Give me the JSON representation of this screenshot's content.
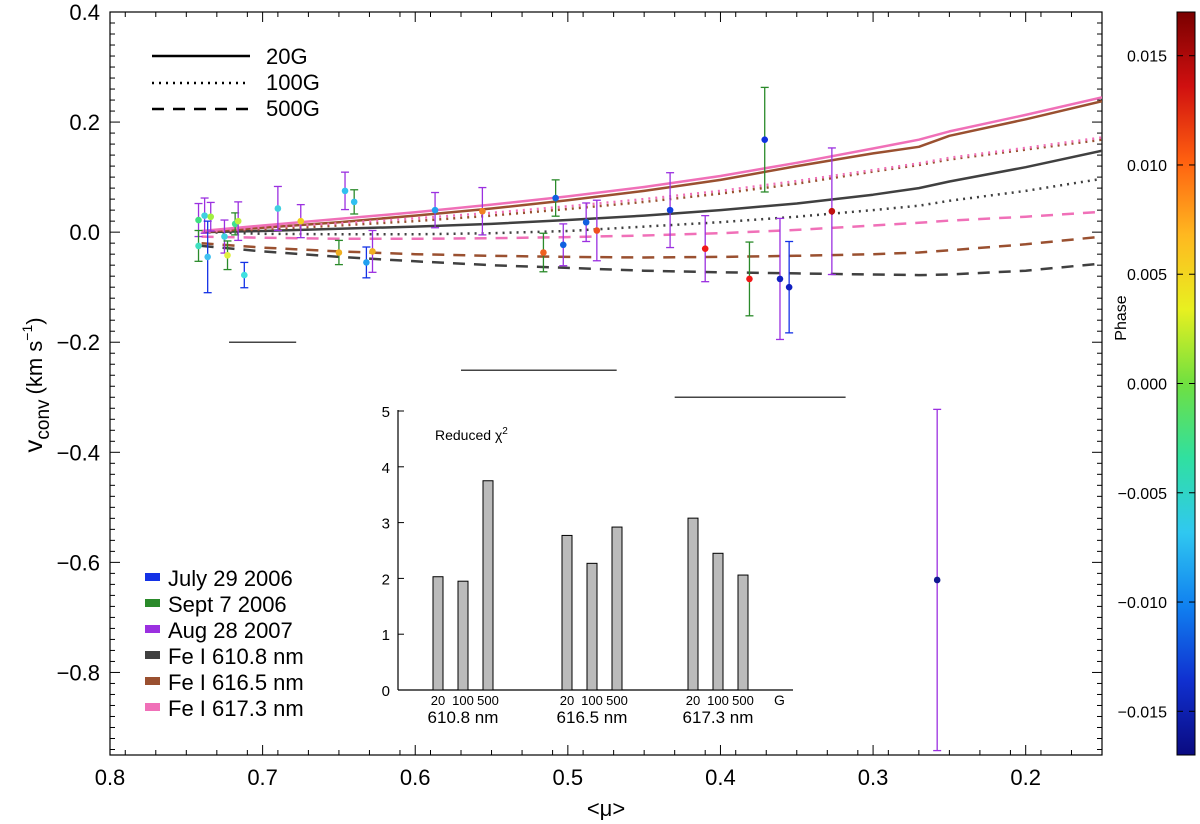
{
  "chart_data": {
    "type": "scatter",
    "main": {
      "xlabel": "<μ>",
      "ylabel": "v",
      "ylabel_sub": "conv",
      "ylabel_units_prefix": "(km s",
      "ylabel_units_exp": "−1",
      "ylabel_units_suffix": ")",
      "xlim": [
        0.8,
        0.15
      ],
      "ylim": [
        -0.95,
        0.4
      ],
      "xticks": [
        0.8,
        0.7,
        0.6,
        0.5,
        0.4,
        0.3,
        0.2
      ],
      "xtick_labels": [
        "0.8",
        "0.7",
        "0.6",
        "0.5",
        "0.4",
        "0.3",
        "0.2"
      ],
      "yticks": [
        0.4,
        0.2,
        0.0,
        -0.2,
        -0.4,
        -0.6,
        -0.8
      ],
      "ytick_labels": [
        "0.4",
        "0.2",
        "0.0",
        "−0.2",
        "−0.4",
        "−0.6",
        "−0.8"
      ]
    },
    "line_styles_legend": [
      {
        "label": "20G",
        "dash": "solid"
      },
      {
        "label": "100G",
        "dash": "dotted"
      },
      {
        "label": "500G",
        "dash": "dashed"
      }
    ],
    "color_legend": [
      {
        "label": "July 29 2006",
        "color": "#1432e6"
      },
      {
        "label": "Sept 7 2006",
        "color": "#2a8a2a"
      },
      {
        "label": "Aug 28 2007",
        "color": "#9b30e0"
      },
      {
        "label": "Fe I 610.8 nm",
        "color": "#404040"
      },
      {
        "label": "Fe I 616.5 nm",
        "color": "#9a5030"
      },
      {
        "label": "Fe I 617.3 nm",
        "color": "#f070b8"
      }
    ],
    "model_curves": {
      "x": [
        0.74,
        0.7,
        0.65,
        0.6,
        0.55,
        0.5,
        0.45,
        0.4,
        0.35,
        0.3,
        0.27,
        0.25,
        0.2,
        0.15
      ],
      "series": [
        {
          "name": "Fe I 610.8 nm 20G",
          "color": "#404040",
          "dash": "solid",
          "y": [
            0.0,
            0.002,
            0.006,
            0.01,
            0.015,
            0.022,
            0.03,
            0.04,
            0.052,
            0.068,
            0.08,
            0.092,
            0.118,
            0.148
          ]
        },
        {
          "name": "Fe I 610.8 nm 100G",
          "color": "#404040",
          "dash": "dotted",
          "y": [
            0.0,
            -0.003,
            -0.004,
            -0.004,
            -0.002,
            0.002,
            0.01,
            0.018,
            0.028,
            0.04,
            0.048,
            0.057,
            0.075,
            0.097
          ]
        },
        {
          "name": "Fe I 610.8 nm 500G",
          "color": "#404040",
          "dash": "dashed",
          "y": [
            -0.025,
            -0.035,
            -0.045,
            -0.053,
            -0.06,
            -0.065,
            -0.07,
            -0.073,
            -0.075,
            -0.077,
            -0.078,
            -0.077,
            -0.07,
            -0.057
          ]
        },
        {
          "name": "Fe I 616.5 nm 20G",
          "color": "#9a5030",
          "dash": "solid",
          "y": [
            0.0,
            0.008,
            0.018,
            0.03,
            0.043,
            0.058,
            0.075,
            0.095,
            0.12,
            0.143,
            0.155,
            0.175,
            0.205,
            0.238
          ]
        },
        {
          "name": "Fe I 616.5 nm 100G",
          "color": "#9a5030",
          "dash": "dotted",
          "y": [
            0.0,
            0.005,
            0.012,
            0.02,
            0.03,
            0.042,
            0.055,
            0.07,
            0.088,
            0.11,
            0.122,
            0.132,
            0.15,
            0.168
          ]
        },
        {
          "name": "Fe I 616.5 nm 500G",
          "color": "#9a5030",
          "dash": "dashed",
          "y": [
            -0.02,
            -0.028,
            -0.035,
            -0.04,
            -0.043,
            -0.045,
            -0.046,
            -0.045,
            -0.043,
            -0.04,
            -0.037,
            -0.033,
            -0.022,
            -0.008
          ]
        },
        {
          "name": "Fe I 617.3 nm 20G",
          "color": "#f070b8",
          "dash": "solid",
          "y": [
            0.002,
            0.012,
            0.024,
            0.036,
            0.05,
            0.065,
            0.082,
            0.102,
            0.126,
            0.152,
            0.168,
            0.183,
            0.213,
            0.245
          ]
        },
        {
          "name": "Fe I 617.3 nm 100G",
          "color": "#f070b8",
          "dash": "dotted",
          "y": [
            0.0,
            0.008,
            0.016,
            0.025,
            0.035,
            0.047,
            0.06,
            0.075,
            0.093,
            0.113,
            0.125,
            0.135,
            0.153,
            0.172
          ]
        },
        {
          "name": "Fe I 617.3 nm 500G",
          "color": "#f070b8",
          "dash": "dashed",
          "y": [
            -0.008,
            -0.01,
            -0.012,
            -0.012,
            -0.011,
            -0.009,
            -0.006,
            -0.002,
            0.004,
            0.012,
            0.017,
            0.021,
            0.028,
            0.037
          ]
        }
      ]
    },
    "observations": [
      {
        "x": 0.742,
        "y": 0.022,
        "err": 0.03,
        "marker": "#40e080",
        "bar": "#9b30e0"
      },
      {
        "x": 0.742,
        "y": -0.025,
        "err": 0.028,
        "marker": "#40e0c0",
        "bar": "#2a8a2a"
      },
      {
        "x": 0.738,
        "y": 0.03,
        "err": 0.032,
        "marker": "#40d0e0",
        "bar": "#9b30e0"
      },
      {
        "x": 0.736,
        "y": -0.045,
        "err": 0.065,
        "marker": "#40c0f0",
        "bar": "#1432e6"
      },
      {
        "x": 0.734,
        "y": 0.028,
        "err": 0.026,
        "marker": "#a0f040",
        "bar": "#9b30e0"
      },
      {
        "x": 0.725,
        "y": -0.008,
        "err": 0.03,
        "marker": "#40d0e0",
        "bar": "#9b30e0"
      },
      {
        "x": 0.723,
        "y": -0.042,
        "err": 0.026,
        "marker": "#e0f040",
        "bar": "#2a8a2a"
      },
      {
        "x": 0.718,
        "y": 0.015,
        "err": 0.02,
        "marker": "#40e090",
        "bar": "#2a8a2a"
      },
      {
        "x": 0.716,
        "y": 0.02,
        "err": 0.035,
        "marker": "#c0f040",
        "bar": "#9b30e0"
      },
      {
        "x": 0.712,
        "y": -0.078,
        "err": 0.023,
        "marker": "#40e0e0",
        "bar": "#1432e6"
      },
      {
        "x": 0.69,
        "y": 0.043,
        "err": 0.04,
        "marker": "#40d0e0",
        "bar": "#9b30e0"
      },
      {
        "x": 0.675,
        "y": 0.02,
        "err": 0.03,
        "marker": "#f0d020",
        "bar": "#9b30e0"
      },
      {
        "x": 0.65,
        "y": -0.037,
        "err": 0.022,
        "marker": "#f0b020",
        "bar": "#2a8a2a"
      },
      {
        "x": 0.646,
        "y": 0.075,
        "err": 0.034,
        "marker": "#30c0f0",
        "bar": "#9b30e0"
      },
      {
        "x": 0.64,
        "y": 0.055,
        "err": 0.022,
        "marker": "#30c0f0",
        "bar": "#2a8a2a"
      },
      {
        "x": 0.632,
        "y": -0.055,
        "err": 0.028,
        "marker": "#20a0f0",
        "bar": "#1432e6"
      },
      {
        "x": 0.628,
        "y": -0.035,
        "err": 0.038,
        "marker": "#f0b020",
        "bar": "#9b30e0"
      },
      {
        "x": 0.587,
        "y": 0.04,
        "err": 0.032,
        "marker": "#20a0f0",
        "bar": "#9b30e0"
      },
      {
        "x": 0.556,
        "y": 0.038,
        "err": 0.043,
        "marker": "#f08020",
        "bar": "#9b30e0"
      },
      {
        "x": 0.516,
        "y": -0.037,
        "err": 0.035,
        "marker": "#f06020",
        "bar": "#2a8a2a"
      },
      {
        "x": 0.508,
        "y": 0.062,
        "err": 0.033,
        "marker": "#1060e0",
        "bar": "#2a8a2a"
      },
      {
        "x": 0.503,
        "y": -0.023,
        "err": 0.038,
        "marker": "#1060e0",
        "bar": "#9b30e0"
      },
      {
        "x": 0.488,
        "y": 0.018,
        "err": 0.035,
        "marker": "#1060e0",
        "bar": "#9b30e0"
      },
      {
        "x": 0.481,
        "y": 0.003,
        "err": 0.055,
        "marker": "#f05020",
        "bar": "#9b30e0"
      },
      {
        "x": 0.433,
        "y": 0.04,
        "err": 0.068,
        "marker": "#1040e0",
        "bar": "#9b30e0"
      },
      {
        "x": 0.41,
        "y": -0.03,
        "err": 0.06,
        "marker": "#f01818",
        "bar": "#9b30e0"
      },
      {
        "x": 0.381,
        "y": -0.085,
        "err": 0.067,
        "marker": "#f01818",
        "bar": "#2a8a2a"
      },
      {
        "x": 0.371,
        "y": 0.168,
        "err": 0.095,
        "marker": "#1030e0",
        "bar": "#2a8a2a"
      },
      {
        "x": 0.361,
        "y": -0.085,
        "err": 0.11,
        "marker": "#1020c0",
        "bar": "#9b30e0"
      },
      {
        "x": 0.355,
        "y": -0.1,
        "err": 0.083,
        "marker": "#1020c0",
        "bar": "#1432e6"
      },
      {
        "x": 0.327,
        "y": 0.038,
        "err": 0.115,
        "marker": "#c01010",
        "bar": "#9b30e0"
      },
      {
        "x": 0.258,
        "y": -0.632,
        "err": 0.31,
        "marker": "#101890",
        "bar": "#9b30e0"
      }
    ],
    "range_bars": [
      {
        "x0": 0.722,
        "x1": 0.678,
        "y": -0.2
      },
      {
        "x0": 0.57,
        "x1": 0.468,
        "y": -0.251
      },
      {
        "x0": 0.43,
        "x1": 0.318,
        "y": -0.3
      }
    ],
    "colorbar": {
      "label": "Phase",
      "min": -0.017,
      "max": 0.017,
      "ticks": [
        0.015,
        0.01,
        0.005,
        0.0,
        -0.005,
        -0.01,
        -0.015
      ],
      "tick_labels": [
        "0.015",
        "0.010",
        "0.005",
        "0.000",
        "−0.005",
        "−0.010",
        "−0.015"
      ],
      "colors": [
        "#7a0000",
        "#d01010",
        "#ff6010",
        "#ffb820",
        "#e8f020",
        "#70e040",
        "#30e0a0",
        "#30c8f0",
        "#1080f0",
        "#1030d0",
        "#0a0a80"
      ]
    },
    "inset": {
      "type": "bar",
      "title_prefix": "Reduced ",
      "title_symbol": "χ",
      "title_exp": "2",
      "ylim": [
        0,
        5
      ],
      "yticks": [
        0,
        1,
        2,
        3,
        4,
        5
      ],
      "ytick_labels": [
        "0",
        "1",
        "2",
        "3",
        "4",
        "5"
      ],
      "bar_color": "#bbbbbb",
      "groups": [
        {
          "label": "610.8 nm",
          "categories": [
            "20",
            "100",
            "500"
          ],
          "values": [
            2.03,
            1.95,
            3.75
          ]
        },
        {
          "label": "616.5 nm",
          "categories": [
            "20",
            "100",
            "500"
          ],
          "values": [
            2.77,
            2.27,
            2.92
          ]
        },
        {
          "label": "617.3 nm",
          "categories": [
            "20",
            "100",
            "500"
          ],
          "values": [
            3.08,
            2.45,
            2.06
          ]
        }
      ],
      "unit_label": "G"
    }
  }
}
